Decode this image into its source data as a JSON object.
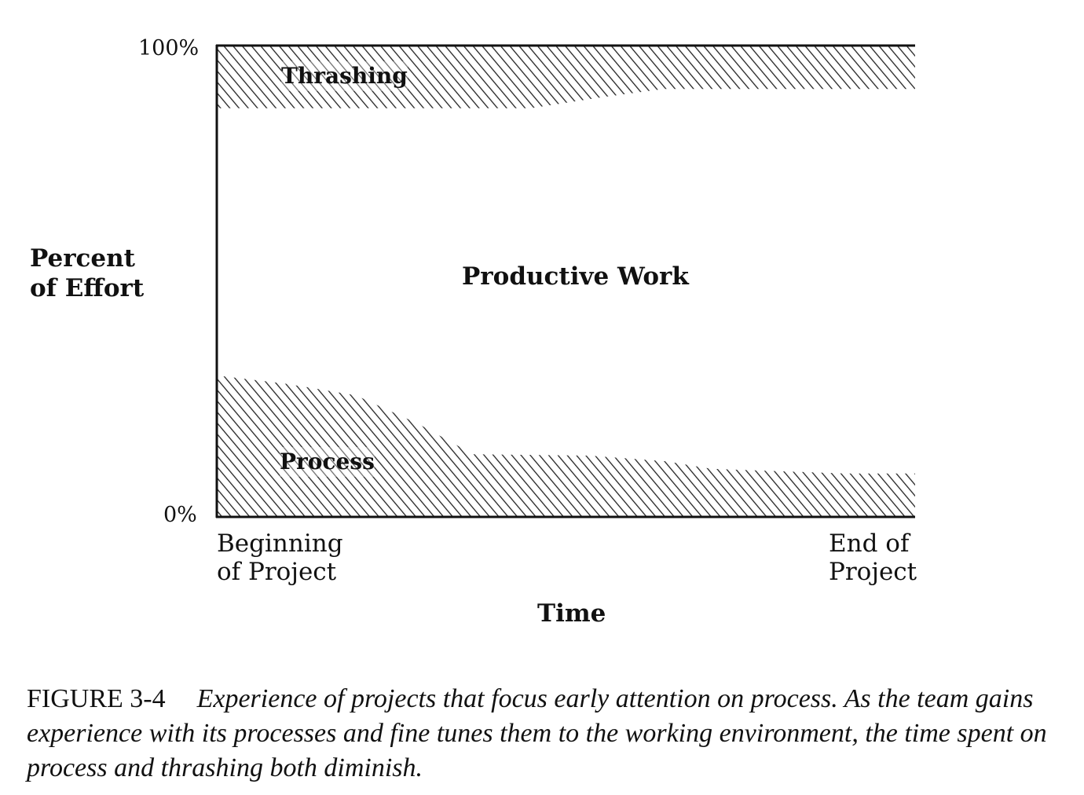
{
  "chart_data": {
    "type": "area",
    "title": "",
    "xlabel": "Time",
    "ylabel": "Percent of Effort",
    "yticks": [
      "0%",
      "100%"
    ],
    "xticks": [
      "Beginning of Project",
      "End of Project"
    ],
    "x_tick_lines": {
      "start": [
        "Beginning",
        "of Project"
      ],
      "end": [
        "End of",
        "Project"
      ]
    },
    "ylim": [
      0,
      100
    ],
    "xlim": [
      0,
      100
    ],
    "grid": false,
    "fill": "diagonal-hatch",
    "series": [
      {
        "name": "Process",
        "x": [
          0,
          9.7,
          19.9,
          28.9,
          36.7,
          53.4,
          64.4,
          70.8,
          90,
          100
        ],
        "upper": [
          30,
          28.3,
          25.8,
          19.7,
          13.3,
          13,
          11.8,
          10.2,
          9.2,
          9.2
        ],
        "lower": [
          0,
          0,
          0,
          0,
          0,
          0,
          0,
          0,
          0,
          0
        ]
      },
      {
        "name": "Productive Work",
        "fill": "none"
      },
      {
        "name": "Thrashing",
        "x": [
          0,
          45,
          55,
          64,
          100
        ],
        "lower": [
          86.7,
          86.7,
          89,
          90.8,
          90.8
        ],
        "upper": [
          100,
          100,
          100,
          100,
          100
        ]
      }
    ]
  },
  "caption": {
    "figure": "FIGURE 3-4",
    "text": "Experience of projects that focus early attention on process. As the team gains experience with its processes and fine tunes them to the working environment, the time spent on process and thrashing both diminish."
  },
  "colors": {
    "ink": "#111111",
    "background": "#ffffff"
  }
}
